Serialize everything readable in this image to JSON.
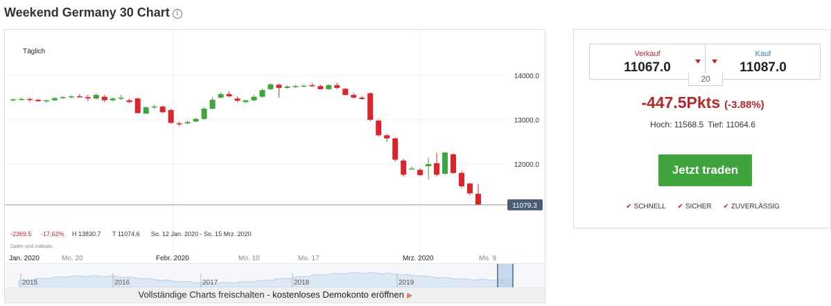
{
  "title": "Weekend Germany 30 Chart",
  "info_glyph": "i",
  "chart": {
    "period_label": "Täglich",
    "y_ticks": [
      "14000.0",
      "13000.0",
      "12000.0"
    ],
    "last_price_label": "11079.3",
    "stats": {
      "change": "-2369.5",
      "change_pct": "-17.62%",
      "high": "H 13830.7",
      "low": "T 11074.6",
      "range": "So. 12 Jan. 2020 - So. 15 Mrz. 2020"
    },
    "footnote": "Daten sind indikativ",
    "x_ticks": [
      "Jan. 2020",
      "Mo. 20",
      "Febr. 2020",
      "Mo. 10",
      "Mo. 17",
      "Mrz. 2020",
      "Mo. 9"
    ],
    "nav_years": [
      "2015",
      "2016",
      "2017",
      "2018",
      "2019"
    ],
    "colors": {
      "up": "#3fa33e",
      "down": "#d9262c",
      "grid": "#ececec"
    }
  },
  "chart_data": {
    "type": "candlestick",
    "title": "Weekend Germany 30 Chart",
    "interval": "Täglich",
    "ylim": [
      11000,
      14500
    ],
    "y_ticks": [
      12000,
      13000,
      14000
    ],
    "last_price": 11079.3,
    "candles": [
      {
        "o": 13440,
        "h": 13480,
        "l": 13420,
        "c": 13460
      },
      {
        "o": 13460,
        "h": 13500,
        "l": 13430,
        "c": 13470
      },
      {
        "o": 13470,
        "h": 13490,
        "l": 13400,
        "c": 13450
      },
      {
        "o": 13450,
        "h": 13480,
        "l": 13410,
        "c": 13420
      },
      {
        "o": 13420,
        "h": 13460,
        "l": 13380,
        "c": 13440
      },
      {
        "o": 13440,
        "h": 13510,
        "l": 13420,
        "c": 13490
      },
      {
        "o": 13490,
        "h": 13540,
        "l": 13470,
        "c": 13510
      },
      {
        "o": 13510,
        "h": 13550,
        "l": 13480,
        "c": 13530
      },
      {
        "o": 13530,
        "h": 13580,
        "l": 13500,
        "c": 13510
      },
      {
        "o": 13510,
        "h": 13560,
        "l": 13420,
        "c": 13480
      },
      {
        "o": 13480,
        "h": 13600,
        "l": 13450,
        "c": 13560
      },
      {
        "o": 13520,
        "h": 13560,
        "l": 13400,
        "c": 13440
      },
      {
        "o": 13440,
        "h": 13500,
        "l": 13410,
        "c": 13480
      },
      {
        "o": 13480,
        "h": 13560,
        "l": 13440,
        "c": 13500
      },
      {
        "o": 13440,
        "h": 13480,
        "l": 13380,
        "c": 13400
      },
      {
        "o": 13480,
        "h": 13500,
        "l": 13140,
        "c": 13150
      },
      {
        "o": 13140,
        "h": 13300,
        "l": 13130,
        "c": 13280
      },
      {
        "o": 13290,
        "h": 13340,
        "l": 13240,
        "c": 13300
      },
      {
        "o": 13300,
        "h": 13320,
        "l": 13150,
        "c": 13170
      },
      {
        "o": 13220,
        "h": 13250,
        "l": 12910,
        "c": 12930
      },
      {
        "o": 12920,
        "h": 12960,
        "l": 12860,
        "c": 12900
      },
      {
        "o": 12920,
        "h": 12980,
        "l": 12900,
        "c": 12950
      },
      {
        "o": 12960,
        "h": 13050,
        "l": 12940,
        "c": 13020
      },
      {
        "o": 13020,
        "h": 13280,
        "l": 13000,
        "c": 13250
      },
      {
        "o": 13250,
        "h": 13520,
        "l": 13230,
        "c": 13450
      },
      {
        "o": 13500,
        "h": 13620,
        "l": 13480,
        "c": 13580
      },
      {
        "o": 13580,
        "h": 13650,
        "l": 13520,
        "c": 13530
      },
      {
        "o": 13480,
        "h": 13520,
        "l": 13400,
        "c": 13430
      },
      {
        "o": 13400,
        "h": 13450,
        "l": 13380,
        "c": 13440
      },
      {
        "o": 13440,
        "h": 13560,
        "l": 13420,
        "c": 13520
      },
      {
        "o": 13520,
        "h": 13700,
        "l": 13500,
        "c": 13670
      },
      {
        "o": 13690,
        "h": 13830,
        "l": 13670,
        "c": 13800
      },
      {
        "o": 13790,
        "h": 13820,
        "l": 13500,
        "c": 13720
      },
      {
        "o": 13720,
        "h": 13780,
        "l": 13700,
        "c": 13750
      },
      {
        "o": 13740,
        "h": 13790,
        "l": 13720,
        "c": 13760
      },
      {
        "o": 13760,
        "h": 13800,
        "l": 13740,
        "c": 13770
      },
      {
        "o": 13780,
        "h": 13830,
        "l": 13740,
        "c": 13760
      },
      {
        "o": 13760,
        "h": 13790,
        "l": 13680,
        "c": 13690
      },
      {
        "o": 13690,
        "h": 13800,
        "l": 13670,
        "c": 13780
      },
      {
        "o": 13780,
        "h": 13830,
        "l": 13690,
        "c": 13720
      },
      {
        "o": 13700,
        "h": 13720,
        "l": 13540,
        "c": 13560
      },
      {
        "o": 13560,
        "h": 13600,
        "l": 13480,
        "c": 13500
      },
      {
        "o": 13500,
        "h": 13530,
        "l": 13450,
        "c": 13470
      },
      {
        "o": 13600,
        "h": 13620,
        "l": 12970,
        "c": 13000
      },
      {
        "o": 12980,
        "h": 13010,
        "l": 12620,
        "c": 12650
      },
      {
        "o": 12650,
        "h": 12680,
        "l": 12500,
        "c": 12580
      },
      {
        "o": 12580,
        "h": 12600,
        "l": 12050,
        "c": 12100
      },
      {
        "o": 12080,
        "h": 12120,
        "l": 11720,
        "c": 11760
      },
      {
        "o": 11900,
        "h": 11950,
        "l": 11880,
        "c": 11900
      },
      {
        "o": 11870,
        "h": 11900,
        "l": 11730,
        "c": 11750
      },
      {
        "o": 11950,
        "h": 12150,
        "l": 11650,
        "c": 12000
      },
      {
        "o": 12020,
        "h": 12260,
        "l": 11720,
        "c": 11760
      },
      {
        "o": 11780,
        "h": 12280,
        "l": 11760,
        "c": 12260
      },
      {
        "o": 12220,
        "h": 12240,
        "l": 11780,
        "c": 11800
      },
      {
        "o": 11800,
        "h": 11850,
        "l": 11450,
        "c": 11500
      },
      {
        "o": 11560,
        "h": 11580,
        "l": 11300,
        "c": 11340
      },
      {
        "o": 11330,
        "h": 11550,
        "l": 11070,
        "c": 11080
      }
    ]
  },
  "nav": {
    "unlock_text": "Vollständige Charts freischalten - ",
    "unlock_link": "kostenloses Demokonto eröffnen"
  },
  "trade": {
    "sell_label": "Verkauf",
    "sell_price": "11067.0",
    "buy_label": "Kauf",
    "buy_price": "11087.0",
    "spread": "20",
    "change_pts": "-447.5Pkts",
    "change_pct": "(-3.88%)",
    "high": "Hoch: 11568.5",
    "low": "Tief: 11064.6",
    "button": "Jetzt traden",
    "badges": [
      "SCHNELL",
      "SICHER",
      "ZUVERLÄSSIG"
    ],
    "check_glyph": "✔",
    "arrow_glyph": "▶"
  }
}
